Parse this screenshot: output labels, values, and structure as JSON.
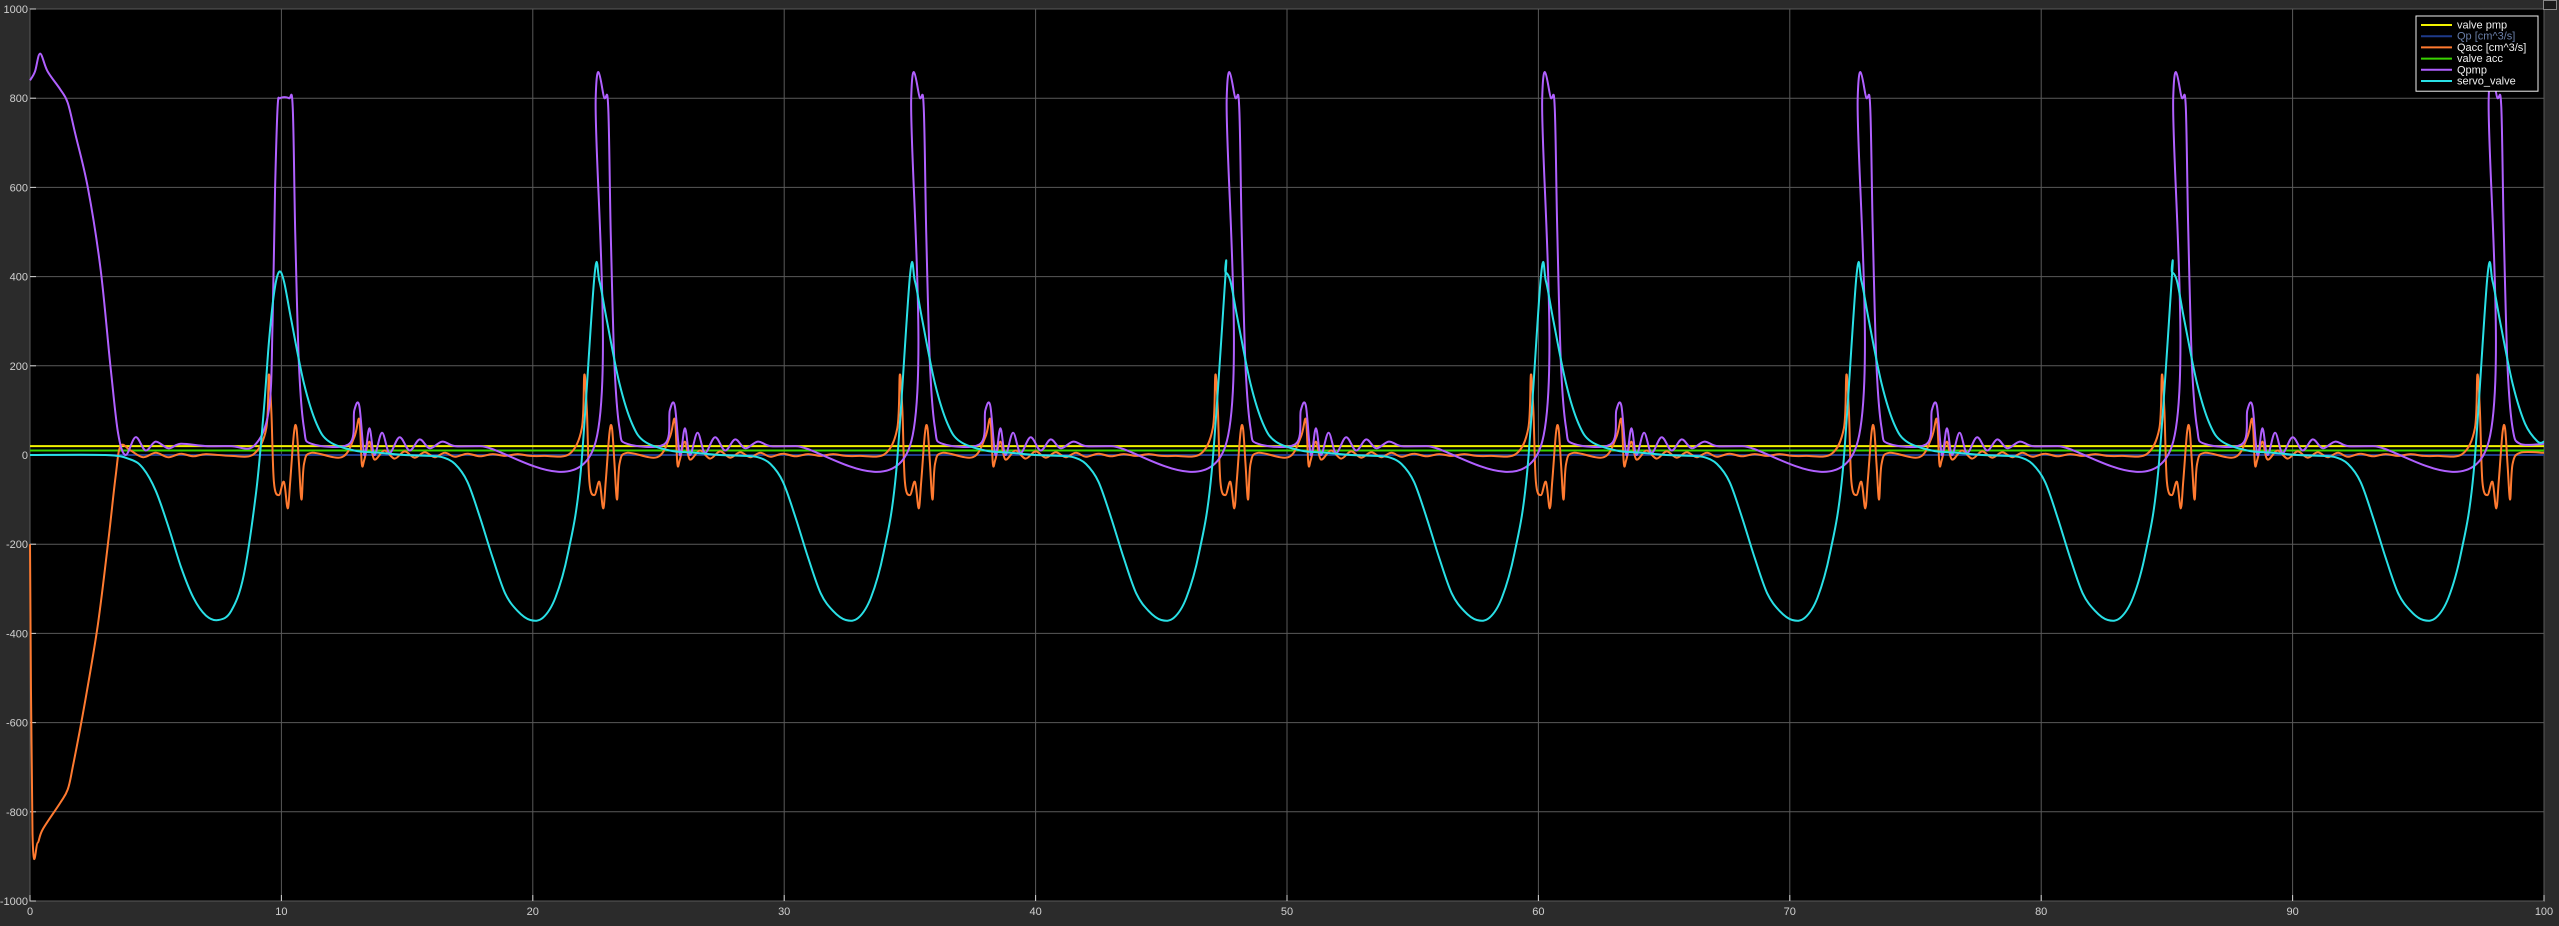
{
  "chart_data": {
    "type": "line",
    "title": "",
    "xlabel": "",
    "ylabel": "",
    "xlim": [
      0,
      100
    ],
    "ylim": [
      -1000,
      1000
    ],
    "grid": true,
    "legend_placement": "top-right",
    "background": "#000000",
    "axis_color": "#d0d0d0",
    "grid_color": "#5a5a5a",
    "x_ticks": [
      0,
      10,
      20,
      30,
      40,
      50,
      60,
      70,
      80,
      90,
      100
    ],
    "y_ticks": [
      -1000,
      -800,
      -600,
      -400,
      -200,
      0,
      200,
      400,
      600,
      800,
      1000
    ],
    "x_tick_labels": [
      "0",
      "10",
      "20",
      "30",
      "40",
      "50",
      "60",
      "70",
      "80",
      "90",
      "100"
    ],
    "y_tick_labels": [
      "-1000",
      "-800",
      "-600",
      "-400",
      "-200",
      "0",
      "200",
      "400",
      "600",
      "800",
      "1000"
    ],
    "cycle": {
      "first_pulse_center": 9.9,
      "period": 12.55,
      "count": 8
    },
    "series": [
      {
        "name": "valve pmp",
        "color": "#f2f200",
        "constant": 20
      },
      {
        "name": "Qp [cm^3/s]",
        "color": "#1e3a8a",
        "constant": 0
      },
      {
        "name": "Qacc [cm^3/s]",
        "color": "#ff7a30",
        "initial": [
          [
            0,
            -200
          ],
          [
            0.1,
            -850
          ],
          [
            0.3,
            -870
          ],
          [
            0.5,
            -840
          ],
          [
            1.2,
            -780
          ],
          [
            1.5,
            -750
          ],
          [
            1.7,
            -700
          ],
          [
            2.2,
            -550
          ],
          [
            2.7,
            -380
          ],
          [
            3.1,
            -200
          ],
          [
            3.4,
            -50
          ],
          [
            3.6,
            20
          ],
          [
            4.0,
            10
          ],
          [
            4.5,
            -5
          ],
          [
            5.0,
            5
          ],
          [
            5.5,
            -5
          ],
          [
            6.0,
            3
          ],
          [
            6.5,
            -3
          ],
          [
            7.0,
            2
          ],
          [
            8.0,
            -2
          ]
        ],
        "pulse": [
          [
            -2.0,
            -2
          ],
          [
            -1.0,
            2
          ],
          [
            -0.5,
            60
          ],
          [
            -0.4,
            180
          ],
          [
            -0.3,
            100
          ],
          [
            -0.2,
            -60
          ],
          [
            0,
            -90
          ],
          [
            0.2,
            -60
          ],
          [
            0.35,
            -120
          ],
          [
            0.45,
            -60
          ],
          [
            0.6,
            50
          ],
          [
            0.7,
            60
          ],
          [
            0.8,
            -20
          ],
          [
            0.9,
            -100
          ],
          [
            1.0,
            -20
          ],
          [
            1.3,
            5
          ],
          [
            2.5,
            -5
          ],
          [
            3.0,
            40
          ],
          [
            3.2,
            80
          ],
          [
            3.3,
            -20
          ],
          [
            3.4,
            -10
          ],
          [
            3.6,
            30
          ],
          [
            3.8,
            -10
          ],
          [
            4.2,
            10
          ],
          [
            4.6,
            -8
          ],
          [
            5.0,
            8
          ],
          [
            5.4,
            -6
          ],
          [
            5.8,
            6
          ],
          [
            6.2,
            -5
          ],
          [
            6.6,
            5
          ],
          [
            7.0,
            -4
          ],
          [
            7.5,
            3
          ],
          [
            8.0,
            -3
          ],
          [
            8.5,
            2
          ],
          [
            9.0,
            -2
          ],
          [
            9.5,
            2
          ],
          [
            10.0,
            -2
          ]
        ]
      },
      {
        "name": "valve acc",
        "color": "#39d200",
        "constant": 10
      },
      {
        "name": "Qpmp",
        "color": "#b060ff",
        "initial": [
          [
            0,
            840
          ],
          [
            0.2,
            860
          ],
          [
            0.4,
            900
          ],
          [
            0.7,
            860
          ],
          [
            1.2,
            820
          ],
          [
            1.5,
            790
          ],
          [
            1.8,
            720
          ],
          [
            2.3,
            600
          ],
          [
            2.8,
            420
          ],
          [
            3.2,
            200
          ],
          [
            3.5,
            50
          ],
          [
            3.8,
            0
          ],
          [
            4.2,
            40
          ],
          [
            4.6,
            10
          ],
          [
            5.0,
            30
          ],
          [
            5.5,
            15
          ],
          [
            6.0,
            25
          ],
          [
            7.0,
            20
          ],
          [
            8.0,
            20
          ]
        ],
        "pulse": [
          [
            -1.0,
            20
          ],
          [
            -0.4,
            100
          ],
          [
            -0.25,
            300
          ],
          [
            -0.15,
            600
          ],
          [
            -0.05,
            780
          ],
          [
            0.05,
            800
          ],
          [
            0.4,
            800
          ],
          [
            0.55,
            780
          ],
          [
            0.65,
            500
          ],
          [
            0.8,
            200
          ],
          [
            1.0,
            60
          ],
          [
            1.3,
            25
          ],
          [
            2.8,
            25
          ],
          [
            3.0,
            100
          ],
          [
            3.2,
            110
          ],
          [
            3.4,
            0
          ],
          [
            3.6,
            60
          ],
          [
            3.8,
            0
          ],
          [
            4.1,
            50
          ],
          [
            4.4,
            5
          ],
          [
            4.8,
            40
          ],
          [
            5.2,
            10
          ],
          [
            5.6,
            35
          ],
          [
            6.0,
            15
          ],
          [
            6.5,
            30
          ],
          [
            7.0,
            20
          ],
          [
            8.0,
            20
          ],
          [
            12.55,
            20
          ]
        ]
      },
      {
        "name": "servo_valve",
        "color": "#29e0e6",
        "initial": [
          [
            0,
            0
          ],
          [
            3.0,
            0
          ],
          [
            4.0,
            -10
          ],
          [
            4.5,
            -30
          ],
          [
            5.0,
            -80
          ],
          [
            5.5,
            -160
          ],
          [
            6.0,
            -250
          ],
          [
            6.5,
            -320
          ],
          [
            7.0,
            -360
          ],
          [
            7.5,
            -370
          ],
          [
            8.0,
            -350
          ],
          [
            8.5,
            -270
          ],
          [
            9.0,
            -80
          ]
        ],
        "pulse": [
          [
            -0.9,
            -80
          ],
          [
            -0.6,
            100
          ],
          [
            -0.4,
            250
          ],
          [
            -0.2,
            360
          ],
          [
            0,
            410
          ],
          [
            0.2,
            390
          ],
          [
            0.5,
            300
          ],
          [
            1.0,
            160
          ],
          [
            1.5,
            70
          ],
          [
            2.0,
            30
          ],
          [
            3.0,
            10
          ],
          [
            4.0,
            5
          ],
          [
            5.0,
            0
          ],
          [
            6.0,
            -2
          ],
          [
            6.5,
            -5
          ],
          [
            7.0,
            -20
          ],
          [
            7.5,
            -60
          ],
          [
            8.0,
            -140
          ],
          [
            8.5,
            -230
          ],
          [
            9.0,
            -310
          ],
          [
            9.5,
            -350
          ],
          [
            10.0,
            -370
          ],
          [
            10.5,
            -365
          ],
          [
            11.0,
            -320
          ],
          [
            11.5,
            -220
          ],
          [
            12.0,
            -40
          ],
          [
            12.55,
            400
          ]
        ]
      }
    ]
  }
}
